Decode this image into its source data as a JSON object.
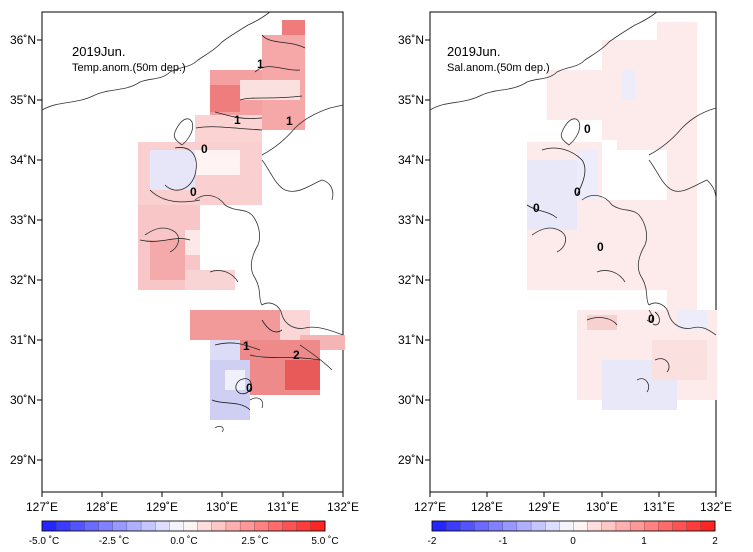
{
  "panels": [
    {
      "title": "2019Jun.",
      "subtitle": "Temp.anom.(50m dep.)",
      "x_ticks": [
        "127˚E",
        "128˚E",
        "129˚E",
        "130˚E",
        "131˚E",
        "132˚E"
      ],
      "y_ticks": [
        "36˚N",
        "35˚N",
        "34˚N",
        "33˚N",
        "32˚N",
        "31˚N",
        "30˚N",
        "29˚N"
      ],
      "contour_labels": [
        "1",
        "1",
        "1",
        "0",
        "0",
        "1",
        "2",
        "0"
      ],
      "colorbar_labels": [
        "-5.0 ˚C",
        "-2.5 ˚C",
        "0.0 ˚C",
        "2.5 ˚C",
        "5.0 ˚C"
      ],
      "colorbar_range": [
        -5,
        5
      ],
      "colors": {
        "neg": "#1a1aff",
        "pos": "#ff1a1a",
        "mid": "#ffffff"
      }
    },
    {
      "title": "2019Jun.",
      "subtitle": "Sal.anom.(50m dep.)",
      "x_ticks": [
        "127˚E",
        "128˚E",
        "129˚E",
        "130˚E",
        "131˚E",
        "132˚E"
      ],
      "y_ticks": [
        "36˚N",
        "35˚N",
        "34˚N",
        "33˚N",
        "32˚N",
        "31˚N",
        "30˚N",
        "29˚N"
      ],
      "contour_labels": [
        "0",
        "0",
        "0",
        "0",
        "0"
      ],
      "colorbar_labels": [
        "-2",
        "-1",
        "0",
        "1",
        "2"
      ],
      "colorbar_range": [
        -2,
        2
      ],
      "colors": {
        "neg": "#1a1aff",
        "pos": "#ff1a1a",
        "mid": "#ffffff"
      }
    }
  ]
}
